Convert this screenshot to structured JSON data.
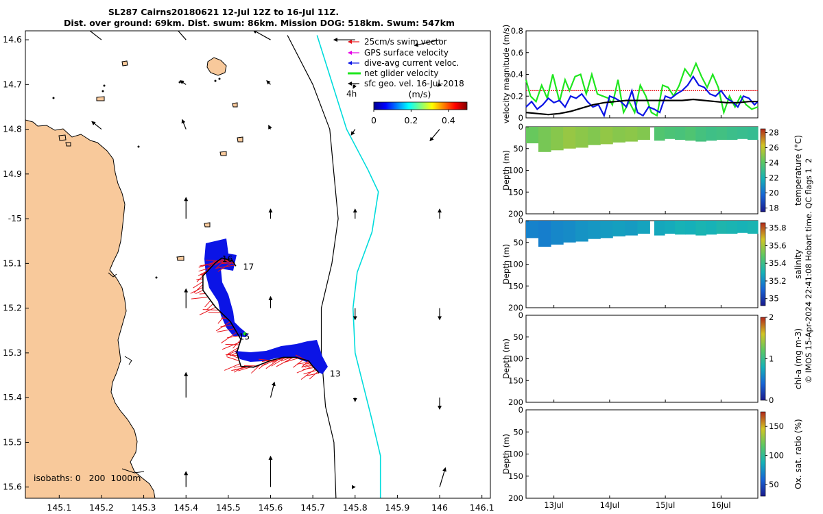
{
  "title": {
    "line1": "SL287 Cairns20180621 12-Jul 12Z to 16-Jul 11Z.",
    "line2": "Dist. over ground: 69km. Dist. swum: 86km. Mission DOG: 518km. Swum: 547km"
  },
  "side_label": "© IMOS 15-Apr-2024 22:41:08 Hobart time. QC flags 1  2",
  "colors": {
    "land": "#F8C99B",
    "shelf_edge": "#00DCDC",
    "swim": "#E8141A",
    "gps": "#E600E6",
    "current": "#0B14E6",
    "glider": "#1EE61E",
    "geo": "#000000"
  },
  "chart_data": [
    {
      "id": "map",
      "type": "scatter",
      "title": "SL287 Cairns20180621 12-Jul 12Z to 16-Jul 11Z.",
      "xlim": [
        145.02,
        146.12
      ],
      "ylim": [
        -15.625,
        -14.58
      ],
      "x_ticks": [
        145.1,
        145.2,
        145.3,
        145.4,
        145.5,
        145.6,
        145.7,
        145.8,
        145.9,
        146,
        146.1
      ],
      "x_tick_labels": [
        "145.1",
        "145.2",
        "145.3",
        "145.4",
        "145.5",
        "145.6",
        "145.7",
        "145.8",
        "145.9",
        "146",
        "146.1"
      ],
      "y_ticks": [
        -14.6,
        -14.7,
        -14.8,
        -14.9,
        -15,
        -15.1,
        -15.2,
        -15.3,
        -15.4,
        -15.5,
        -15.6
      ],
      "y_tick_labels": [
        "14.6",
        "14.7",
        "14.8",
        "14.9",
        "-15",
        "15.1",
        "15.2",
        "15.3",
        "15.4",
        "15.5",
        "15.6"
      ],
      "legend": {
        "placement": "top-right",
        "items": [
          "25cm/s swim vector",
          "GPS surface velocity",
          "dive-avg current veloc.",
          "net glider velocity",
          "sfc geo. vel. 16-Jul-2018"
        ]
      },
      "scale_label": "4h",
      "colorbar": {
        "label": "(m/s)",
        "range": [
          0,
          0.5
        ],
        "ticks": [
          0,
          0.2,
          0.4
        ],
        "tick_labels": [
          "0",
          "0.2",
          "0.4"
        ]
      },
      "isobaths_label": "isobaths: 0   200  1000m",
      "day_labels": [
        {
          "label": "16",
          "lon": 145.485,
          "lat": -15.09
        },
        {
          "label": "17",
          "lon": 145.535,
          "lat": -15.108
        },
        {
          "label": "15",
          "lon": 145.525,
          "lat": -15.264
        },
        {
          "label": "13",
          "lon": 145.74,
          "lat": -15.347
        }
      ],
      "glider_track": [
        [
          145.715,
          -15.345
        ],
        [
          145.7,
          -15.33
        ],
        [
          145.69,
          -15.318
        ],
        [
          145.66,
          -15.31
        ],
        [
          145.63,
          -15.31
        ],
        [
          145.6,
          -15.317
        ],
        [
          145.56,
          -15.332
        ],
        [
          145.53,
          -15.33
        ],
        [
          145.52,
          -15.3
        ],
        [
          145.53,
          -15.27
        ],
        [
          145.505,
          -15.23
        ],
        [
          145.47,
          -15.198
        ],
        [
          145.44,
          -15.16
        ],
        [
          145.44,
          -15.128
        ],
        [
          145.47,
          -15.098
        ],
        [
          145.485,
          -15.088
        ],
        [
          145.51,
          -15.094
        ],
        [
          145.518,
          -15.106
        ]
      ],
      "shelf_edge_200m": [
        [
          145.71,
          -14.59
        ],
        [
          145.74,
          -14.68
        ],
        [
          145.78,
          -14.8
        ],
        [
          145.83,
          -14.89
        ],
        [
          145.855,
          -14.94
        ],
        [
          145.84,
          -15.03
        ],
        [
          145.805,
          -15.12
        ],
        [
          145.795,
          -15.2
        ],
        [
          145.8,
          -15.3
        ],
        [
          145.84,
          -15.45
        ],
        [
          145.86,
          -15.53
        ],
        [
          145.86,
          -15.63
        ]
      ],
      "isobath_1000m": [
        [
          145.64,
          -14.59
        ],
        [
          145.7,
          -14.7
        ],
        [
          145.74,
          -14.8
        ],
        [
          145.75,
          -14.9
        ],
        [
          145.76,
          -15.0
        ],
        [
          145.745,
          -15.1
        ],
        [
          145.72,
          -15.2
        ],
        [
          145.72,
          -15.3
        ],
        [
          145.73,
          -15.42
        ],
        [
          145.75,
          -15.5
        ],
        [
          145.755,
          -15.63
        ]
      ],
      "geo_vectors": [
        {
          "lon": 145.2,
          "lat": -14.6,
          "u": -0.09,
          "v": 0.07
        },
        {
          "lon": 145.4,
          "lat": -14.6,
          "u": -0.07,
          "v": 0.08
        },
        {
          "lon": 145.6,
          "lat": -14.6,
          "u": -0.09,
          "v": 0.05
        },
        {
          "lon": 145.8,
          "lat": -14.6,
          "u": -0.11,
          "v": 0.0
        },
        {
          "lon": 146.0,
          "lat": -14.6,
          "u": -0.13,
          "v": -0.03
        },
        {
          "lon": 145.4,
          "lat": -14.7,
          "u": -0.03,
          "v": 0.02
        },
        {
          "lon": 145.6,
          "lat": -14.7,
          "u": -0.02,
          "v": 0.02
        },
        {
          "lon": 145.8,
          "lat": -14.7,
          "u": -0.01,
          "v": -0.02
        },
        {
          "lon": 146.0,
          "lat": -14.7,
          "u": -0.01,
          "v": -0.01
        },
        {
          "lon": 145.2,
          "lat": -14.8,
          "u": -0.05,
          "v": 0.04
        },
        {
          "lon": 145.4,
          "lat": -14.8,
          "u": -0.02,
          "v": 0.05
        },
        {
          "lon": 145.6,
          "lat": -14.8,
          "u": -0.01,
          "v": 0.02
        },
        {
          "lon": 145.8,
          "lat": -14.8,
          "u": -0.02,
          "v": -0.03
        },
        {
          "lon": 146.0,
          "lat": -14.8,
          "u": -0.05,
          "v": -0.06
        },
        {
          "lon": 145.4,
          "lat": -15.0,
          "u": 0.0,
          "v": 0.11
        },
        {
          "lon": 145.6,
          "lat": -15.0,
          "u": 0.0,
          "v": 0.05
        },
        {
          "lon": 145.8,
          "lat": -15.0,
          "u": 0.0,
          "v": 0.05
        },
        {
          "lon": 146.0,
          "lat": -15.0,
          "u": 0.0,
          "v": 0.05
        },
        {
          "lon": 145.4,
          "lat": -15.2,
          "u": 0.0,
          "v": 0.1
        },
        {
          "lon": 145.6,
          "lat": -15.2,
          "u": 0.0,
          "v": 0.06
        },
        {
          "lon": 145.8,
          "lat": -15.2,
          "u": 0.0,
          "v": -0.06
        },
        {
          "lon": 146.0,
          "lat": -15.2,
          "u": 0.0,
          "v": -0.06
        },
        {
          "lon": 145.4,
          "lat": -15.4,
          "u": 0.0,
          "v": 0.13
        },
        {
          "lon": 145.6,
          "lat": -15.4,
          "u": 0.02,
          "v": 0.08
        },
        {
          "lon": 145.8,
          "lat": -15.4,
          "u": 0.0,
          "v": -0.02
        },
        {
          "lon": 146.0,
          "lat": -15.4,
          "u": 0.0,
          "v": -0.06
        },
        {
          "lon": 145.4,
          "lat": -15.6,
          "u": 0.0,
          "v": 0.08
        },
        {
          "lon": 145.6,
          "lat": -15.6,
          "u": 0.0,
          "v": 0.16
        },
        {
          "lon": 145.8,
          "lat": -15.6,
          "u": 0.0,
          "v": 0.0
        },
        {
          "lon": 146.0,
          "lat": -15.6,
          "u": 0.03,
          "v": 0.1
        }
      ]
    },
    {
      "id": "velocity",
      "type": "line",
      "ylabel": "velocity magnitude (m/s)",
      "ylim": [
        0,
        0.8
      ],
      "y_ticks": [
        0,
        0.2,
        0.4,
        0.6,
        0.8
      ],
      "xlim": [
        12.5,
        16.66
      ],
      "series": [
        {
          "name": "swim vector (25cm/s)",
          "color": "#E8141A",
          "x": [
            12.5,
            16.66
          ],
          "values": [
            0.25,
            0.25
          ]
        },
        {
          "name": "net glider velocity",
          "color": "#1EE61E",
          "x": [
            12.5,
            12.58,
            12.68,
            12.78,
            12.88,
            12.98,
            13.1,
            13.2,
            13.28,
            13.38,
            13.48,
            13.58,
            13.68,
            13.78,
            13.88,
            13.98,
            14.05,
            14.15,
            14.25,
            14.35,
            14.45,
            14.55,
            14.65,
            14.75,
            14.85,
            14.95,
            15.05,
            15.15,
            15.25,
            15.35,
            15.45,
            15.55,
            15.65,
            15.75,
            15.85,
            15.95,
            16.05,
            16.15,
            16.25,
            16.35,
            16.45,
            16.55,
            16.66
          ],
          "values": [
            0.35,
            0.2,
            0.15,
            0.3,
            0.18,
            0.4,
            0.15,
            0.35,
            0.25,
            0.38,
            0.4,
            0.22,
            0.4,
            0.22,
            0.2,
            0.18,
            0.12,
            0.35,
            0.05,
            0.15,
            0.05,
            0.3,
            0.2,
            0.05,
            0.02,
            0.3,
            0.28,
            0.2,
            0.3,
            0.45,
            0.38,
            0.5,
            0.38,
            0.28,
            0.4,
            0.28,
            0.05,
            0.2,
            0.1,
            0.2,
            0.12,
            0.08,
            0.1
          ]
        },
        {
          "name": "dive-avg current veloc.",
          "color": "#0B14E6",
          "x": [
            12.5,
            12.6,
            12.7,
            12.8,
            12.9,
            13.0,
            13.1,
            13.2,
            13.3,
            13.4,
            13.5,
            13.6,
            13.7,
            13.8,
            13.9,
            14.0,
            14.1,
            14.2,
            14.3,
            14.4,
            14.5,
            14.6,
            14.7,
            14.8,
            14.9,
            15.0,
            15.1,
            15.2,
            15.3,
            15.4,
            15.5,
            15.6,
            15.7,
            15.8,
            15.9,
            16.0,
            16.1,
            16.2,
            16.3,
            16.4,
            16.5,
            16.6,
            16.66
          ],
          "values": [
            0.1,
            0.15,
            0.08,
            0.12,
            0.18,
            0.14,
            0.16,
            0.1,
            0.2,
            0.18,
            0.22,
            0.15,
            0.1,
            0.12,
            0.02,
            0.2,
            0.18,
            0.15,
            0.1,
            0.25,
            0.05,
            0.02,
            0.1,
            0.08,
            0.05,
            0.2,
            0.18,
            0.22,
            0.25,
            0.3,
            0.38,
            0.3,
            0.28,
            0.22,
            0.2,
            0.25,
            0.18,
            0.15,
            0.1,
            0.2,
            0.18,
            0.12,
            0.15
          ]
        },
        {
          "name": "sfc geo. vel.",
          "color": "#000000",
          "x": [
            12.5,
            12.7,
            12.9,
            13.1,
            13.3,
            13.5,
            13.7,
            13.9,
            14.1,
            14.3,
            14.5,
            14.7,
            14.9,
            15.1,
            15.3,
            15.5,
            15.7,
            15.9,
            16.1,
            16.3,
            16.5,
            16.66
          ],
          "values": [
            0.05,
            0.04,
            0.03,
            0.04,
            0.06,
            0.09,
            0.12,
            0.14,
            0.15,
            0.16,
            0.16,
            0.16,
            0.16,
            0.16,
            0.16,
            0.17,
            0.16,
            0.15,
            0.14,
            0.14,
            0.15,
            0.15
          ]
        }
      ]
    },
    {
      "id": "temperature",
      "type": "heatmap",
      "ylabel": "Depth (m)",
      "colorbar_label": "temperature (°C)",
      "ylim": [
        200,
        0
      ],
      "y_ticks": [
        0,
        50,
        100,
        150,
        200
      ],
      "clim": [
        17.5,
        28.5
      ],
      "c_ticks": [
        18,
        20,
        22,
        24,
        26,
        28
      ],
      "segments": [
        {
          "t0": 12.5,
          "t1": 14.72,
          "maxdepth": [
            38,
            58,
            54,
            50,
            48,
            42,
            40,
            36,
            34,
            30
          ],
          "values": [
            24.3,
            24.6,
            24.9,
            25.2,
            25.0,
            24.8,
            25.1,
            24.9,
            25.0,
            24.8
          ]
        },
        {
          "t0": 14.8,
          "t1": 16.66,
          "maxdepth": [
            32,
            28,
            30,
            32,
            34,
            32,
            30,
            30,
            28,
            30
          ],
          "values": [
            23.8,
            23.6,
            23.5,
            23.7,
            23.4,
            23.2,
            23.3,
            23.1,
            23.0,
            22.9
          ]
        }
      ]
    },
    {
      "id": "salinity",
      "type": "heatmap",
      "ylabel": "Depth (m)",
      "colorbar_label": "salinity",
      "ylim": [
        200,
        0
      ],
      "y_ticks": [
        0,
        50,
        100,
        150,
        200
      ],
      "clim": [
        34.92,
        35.86
      ],
      "c_ticks": [
        35,
        35.2,
        35.4,
        35.6,
        35.8
      ],
      "segments": [
        {
          "t0": 12.5,
          "t1": 14.72,
          "maxdepth": [
            40,
            60,
            55,
            50,
            48,
            42,
            40,
            36,
            34,
            30
          ],
          "values": [
            35.18,
            35.17,
            35.19,
            35.2,
            35.22,
            35.23,
            35.24,
            35.25,
            35.24,
            35.26
          ]
        },
        {
          "t0": 14.8,
          "t1": 16.66,
          "maxdepth": [
            34,
            30,
            32,
            32,
            34,
            32,
            30,
            30,
            28,
            30
          ],
          "values": [
            35.27,
            35.28,
            35.3,
            35.29,
            35.31,
            35.3,
            35.32,
            35.31,
            35.3,
            35.31
          ]
        }
      ]
    },
    {
      "id": "chla",
      "type": "heatmap",
      "ylabel": "Depth (m)",
      "colorbar_label": "chl-a (mg m-3)",
      "ylim": [
        200,
        0
      ],
      "y_ticks": [
        0,
        50,
        100,
        150,
        200
      ],
      "clim": [
        0,
        2
      ],
      "c_ticks": [
        0,
        1,
        2
      ],
      "segments": []
    },
    {
      "id": "oxygen",
      "type": "heatmap",
      "ylabel": "Depth (m)",
      "colorbar_label": "Ox. sat. ratio (%)",
      "ylim": [
        200,
        0
      ],
      "y_ticks": [
        0,
        50,
        100,
        150,
        200
      ],
      "clim": [
        30,
        175
      ],
      "c_ticks": [
        50,
        100,
        150
      ],
      "segments": []
    }
  ],
  "time_axis": {
    "ticks": [
      13,
      14,
      15,
      16
    ],
    "tick_labels": [
      "13Jul",
      "14Jul",
      "15Jul",
      "16Jul"
    ]
  }
}
